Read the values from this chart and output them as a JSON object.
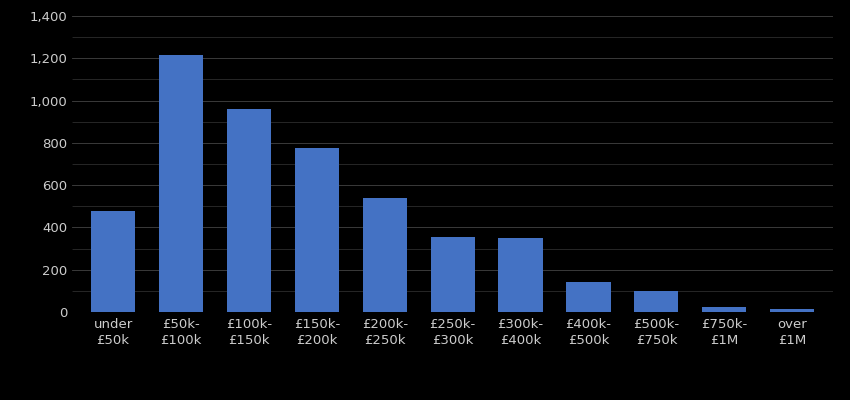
{
  "categories": [
    "under\n£50k",
    "£50k-\n£100k",
    "£100k-\n£150k",
    "£150k-\n£200k",
    "£200k-\n£250k",
    "£250k-\n£300k",
    "£300k-\n£400k",
    "£400k-\n£500k",
    "£500k-\n£750k",
    "£750k-\n£1M",
    "over\n£1M"
  ],
  "values": [
    480,
    1215,
    960,
    775,
    540,
    355,
    348,
    143,
    100,
    25,
    12
  ],
  "bar_color": "#4472C4",
  "background_color": "#000000",
  "text_color": "#cccccc",
  "grid_color": "#444444",
  "ylim": [
    0,
    1400
  ],
  "yticks": [
    0,
    200,
    400,
    600,
    800,
    1000,
    1200,
    1400
  ],
  "tick_label_fontsize": 9.5,
  "bar_width": 0.65
}
